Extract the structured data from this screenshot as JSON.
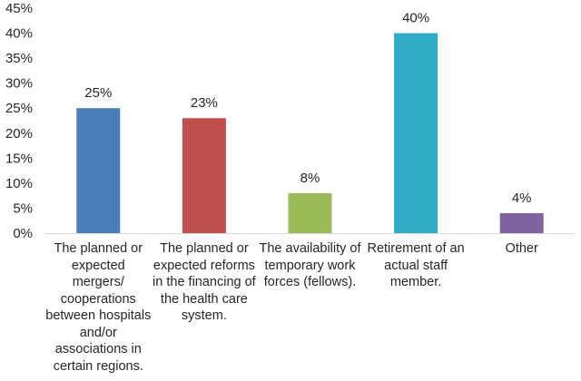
{
  "chart_data": {
    "type": "bar",
    "title": "",
    "xlabel": "",
    "ylabel": "",
    "ylim": [
      0,
      45
    ],
    "yticks": [
      0,
      5,
      10,
      15,
      20,
      25,
      30,
      35,
      40,
      45
    ],
    "ytick_labels": [
      "0%",
      "5%",
      "10%",
      "15%",
      "20%",
      "25%",
      "30%",
      "35%",
      "40%",
      "45%"
    ],
    "grid": false,
    "legend": "none",
    "categories": [
      "The planned or expected mergers/ cooperations between hospitals and/or associations in certain regions.",
      "The planned or expected reforms in the financing of the health care system.",
      "The availability of temporary work forces (fellows).",
      "Retirement of an actual staff member.",
      "Other"
    ],
    "category_lines": [
      [
        "The planned or",
        "expected",
        "mergers/",
        "cooperations",
        "between hospitals",
        "and/or",
        "associations in",
        "certain regions."
      ],
      [
        "The planned or",
        "expected reforms",
        "in the financing of",
        "the health care",
        "system."
      ],
      [
        "The availability of",
        "temporary work",
        "forces (fellows)."
      ],
      [
        "Retirement of an",
        "actual staff",
        "member."
      ],
      [
        "Other"
      ]
    ],
    "values": [
      25,
      23,
      8,
      40,
      4
    ],
    "value_labels": [
      "25%",
      "23%",
      "8%",
      "40%",
      "4%"
    ],
    "colors": [
      "#4a7ebb",
      "#c0504d",
      "#9bbb59",
      "#31acc6",
      "#8064a2"
    ]
  }
}
